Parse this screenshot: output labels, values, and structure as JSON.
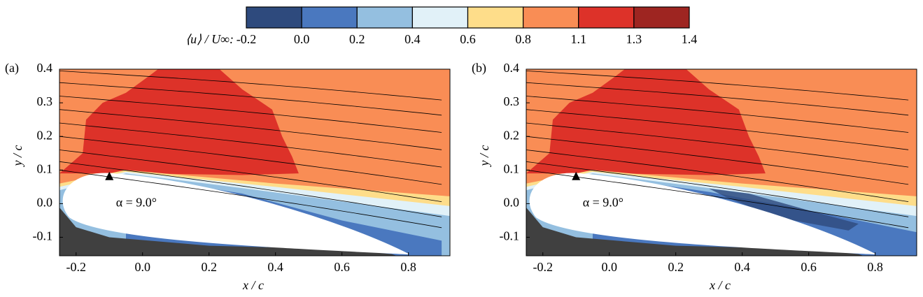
{
  "colorbar": {
    "label": "⟨u⟩ / U∞:",
    "ticks": [
      -0.2,
      {
        "value": 0,
        "label": "0.0"
      },
      0.2,
      0.4,
      0.6,
      0.8,
      1.1,
      1.3,
      1.4
    ],
    "colors": [
      "#2e4a7d",
      "#4a78bf",
      "#94bfe0",
      "#e1f1f8",
      "#fedd8a",
      "#f98d55",
      "#dd3229",
      "#9e2521"
    ]
  },
  "chart_data": [
    {
      "type": "contour",
      "panel_label": "(a)",
      "annotation": "α = 9.0°",
      "xlabel": "x / c",
      "ylabel": "y / c",
      "xlim": [
        -0.25,
        0.925
      ],
      "ylim": [
        -0.155,
        0.4
      ],
      "xticks": [
        -0.2,
        {
          "value": 0,
          "label": "0.0"
        },
        0.2,
        0.4,
        0.6,
        0.8
      ],
      "yticks": [
        -0.1,
        {
          "value": 0,
          "label": "0.0"
        },
        0.1,
        0.2,
        0.3,
        0.4
      ]
    },
    {
      "type": "contour",
      "panel_label": "(b)",
      "annotation": "α = 9.0°",
      "xlabel": "x / c",
      "ylabel": "y / c",
      "xlim": [
        -0.25,
        0.925
      ],
      "ylim": [
        -0.155,
        0.4
      ],
      "xticks": [
        -0.2,
        {
          "value": 0,
          "label": "0.0"
        },
        0.2,
        0.4,
        0.6,
        0.8
      ],
      "yticks": [
        -0.1,
        {
          "value": 0,
          "label": "0.0"
        },
        0.1,
        0.2,
        0.3,
        0.4
      ]
    }
  ]
}
